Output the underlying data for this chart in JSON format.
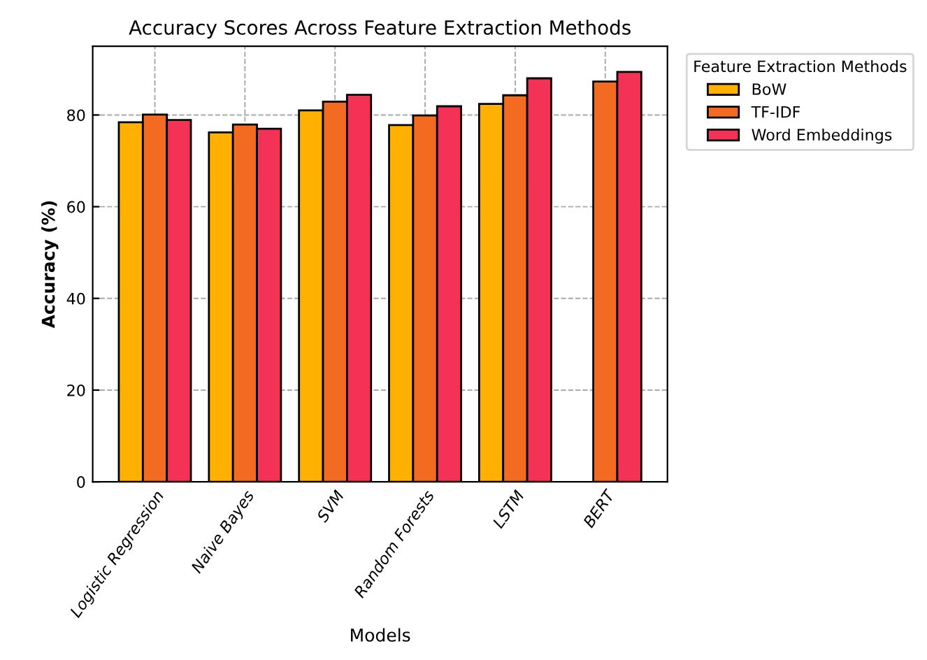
{
  "chart_data": {
    "type": "bar",
    "title": "Accuracy Scores Across Feature Extraction Methods",
    "xlabel": "Models",
    "ylabel": "Accuracy (%)",
    "categories": [
      "Logistic Regression",
      "Naive Bayes",
      "SVM",
      "Random Forests",
      "LSTM",
      "BERT"
    ],
    "series": [
      {
        "name": "BoW",
        "color": "#ffb000",
        "values": [
          78.4,
          76.2,
          81.0,
          77.8,
          82.4,
          null
        ]
      },
      {
        "name": "TF-IDF",
        "color": "#f26b21",
        "values": [
          80.1,
          77.9,
          82.9,
          79.9,
          84.3,
          87.3
        ]
      },
      {
        "name": "Word Embeddings",
        "color": "#f43256",
        "values": [
          78.9,
          77.0,
          84.4,
          81.9,
          88.0,
          89.4
        ]
      }
    ],
    "legend_title": "Feature Extraction Methods",
    "legend": "right",
    "ylim": [
      0,
      95
    ],
    "yticks": [
      0,
      20,
      40,
      60,
      80
    ],
    "grid": true
  }
}
